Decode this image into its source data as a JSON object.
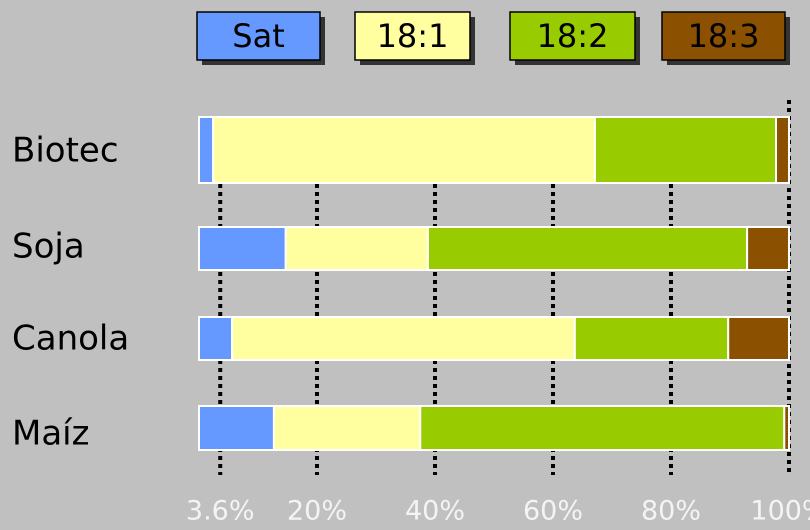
{
  "chart_data": {
    "type": "stacked-bar-horizontal",
    "categories": [
      "Biotec",
      "Soja",
      "Canola",
      "Maíz"
    ],
    "series": [
      {
        "name": "Sat",
        "color": "#6699ff",
        "values": [
          2.4,
          14.7,
          5.6,
          12.7
        ]
      },
      {
        "name": "18:1",
        "color": "#ffffa0",
        "values": [
          64.7,
          24.1,
          58.1,
          24.8
        ]
      },
      {
        "name": "18:2",
        "color": "#99cc00",
        "values": [
          30.7,
          54.1,
          26.0,
          61.7
        ]
      },
      {
        "name": "18:3",
        "color": "#8b5000",
        "values": [
          2.2,
          7.1,
          10.3,
          0.8
        ]
      }
    ],
    "xlim": [
      0,
      100
    ],
    "xticks": [
      {
        "value": 3.6,
        "label": "3.6%"
      },
      {
        "value": 20,
        "label": "20%"
      },
      {
        "value": 40,
        "label": "40%"
      },
      {
        "value": 60,
        "label": "60%"
      },
      {
        "value": 80,
        "label": "80%"
      },
      {
        "value": 100,
        "label": "100%"
      }
    ],
    "grid": true,
    "legend": "top"
  }
}
